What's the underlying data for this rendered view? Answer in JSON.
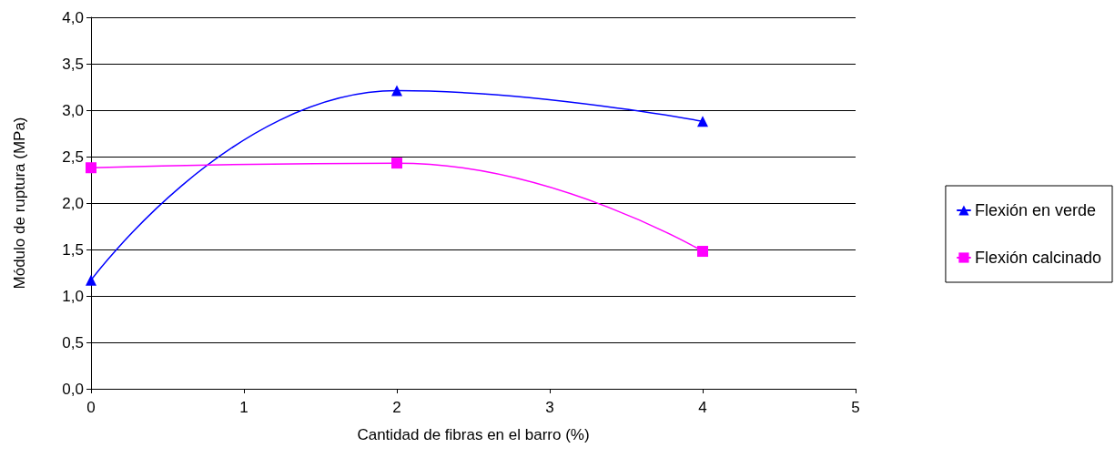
{
  "chart_data": {
    "type": "line",
    "xlabel": "Cantidad de fibras en el barro (%)",
    "ylabel": "Módulo de ruptura (MPa)",
    "x": [
      0,
      2,
      4
    ],
    "series": [
      {
        "name": "Flexión en verde",
        "color": "#0000ff",
        "marker": "triangle",
        "values": [
          1.17,
          3.21,
          2.88
        ]
      },
      {
        "name": "Flexión calcinado",
        "color": "#ff00ff",
        "marker": "square",
        "values": [
          2.38,
          2.43,
          1.48
        ]
      }
    ],
    "xlim": [
      0,
      5
    ],
    "xticks": [
      0,
      1,
      2,
      3,
      4,
      5
    ],
    "ylim": [
      0,
      4
    ],
    "yticks": [
      {
        "value": 0,
        "label": "0,0"
      },
      {
        "value": 0.5,
        "label": "0,5"
      },
      {
        "value": 1,
        "label": "1,0"
      },
      {
        "value": 1.5,
        "label": "1,5"
      },
      {
        "value": 2,
        "label": "2,0"
      },
      {
        "value": 2.5,
        "label": "2,5"
      },
      {
        "value": 3,
        "label": "3,0"
      },
      {
        "value": 3.5,
        "label": "3,5"
      },
      {
        "value": 4,
        "label": "4,0"
      }
    ],
    "grid": "y",
    "legend": "right",
    "line_style": "solid"
  }
}
